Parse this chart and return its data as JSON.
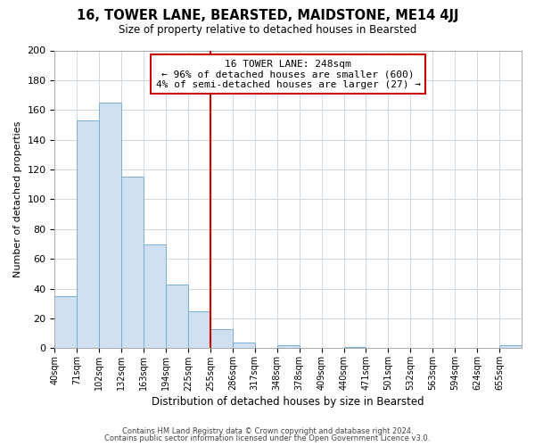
{
  "title": "16, TOWER LANE, BEARSTED, MAIDSTONE, ME14 4JJ",
  "subtitle": "Size of property relative to detached houses in Bearsted",
  "xlabel": "Distribution of detached houses by size in Bearsted",
  "ylabel": "Number of detached properties",
  "bar_color": "#cfe0f0",
  "bar_edge_color": "#7bafd4",
  "background_color": "#ffffff",
  "grid_color": "#d0d8e0",
  "bin_labels": [
    "40sqm",
    "71sqm",
    "102sqm",
    "132sqm",
    "163sqm",
    "194sqm",
    "225sqm",
    "255sqm",
    "286sqm",
    "317sqm",
    "348sqm",
    "378sqm",
    "409sqm",
    "440sqm",
    "471sqm",
    "501sqm",
    "532sqm",
    "563sqm",
    "594sqm",
    "624sqm",
    "655sqm"
  ],
  "bar_heights": [
    35,
    153,
    165,
    115,
    70,
    43,
    25,
    13,
    4,
    0,
    2,
    0,
    0,
    1,
    0,
    0,
    0,
    0,
    0,
    0,
    2
  ],
  "vline_color": "#cc0000",
  "annotation_line1": "16 TOWER LANE: 248sqm",
  "annotation_line2": "← 96% of detached houses are smaller (600)",
  "annotation_line3": "4% of semi-detached houses are larger (27) →",
  "annotation_box_color": "#ffffff",
  "annotation_box_edge": "#cc0000",
  "ylim": [
    0,
    200
  ],
  "yticks": [
    0,
    20,
    40,
    60,
    80,
    100,
    120,
    140,
    160,
    180,
    200
  ],
  "footer_line1": "Contains HM Land Registry data © Crown copyright and database right 2024.",
  "footer_line2": "Contains public sector information licensed under the Open Government Licence v3.0."
}
